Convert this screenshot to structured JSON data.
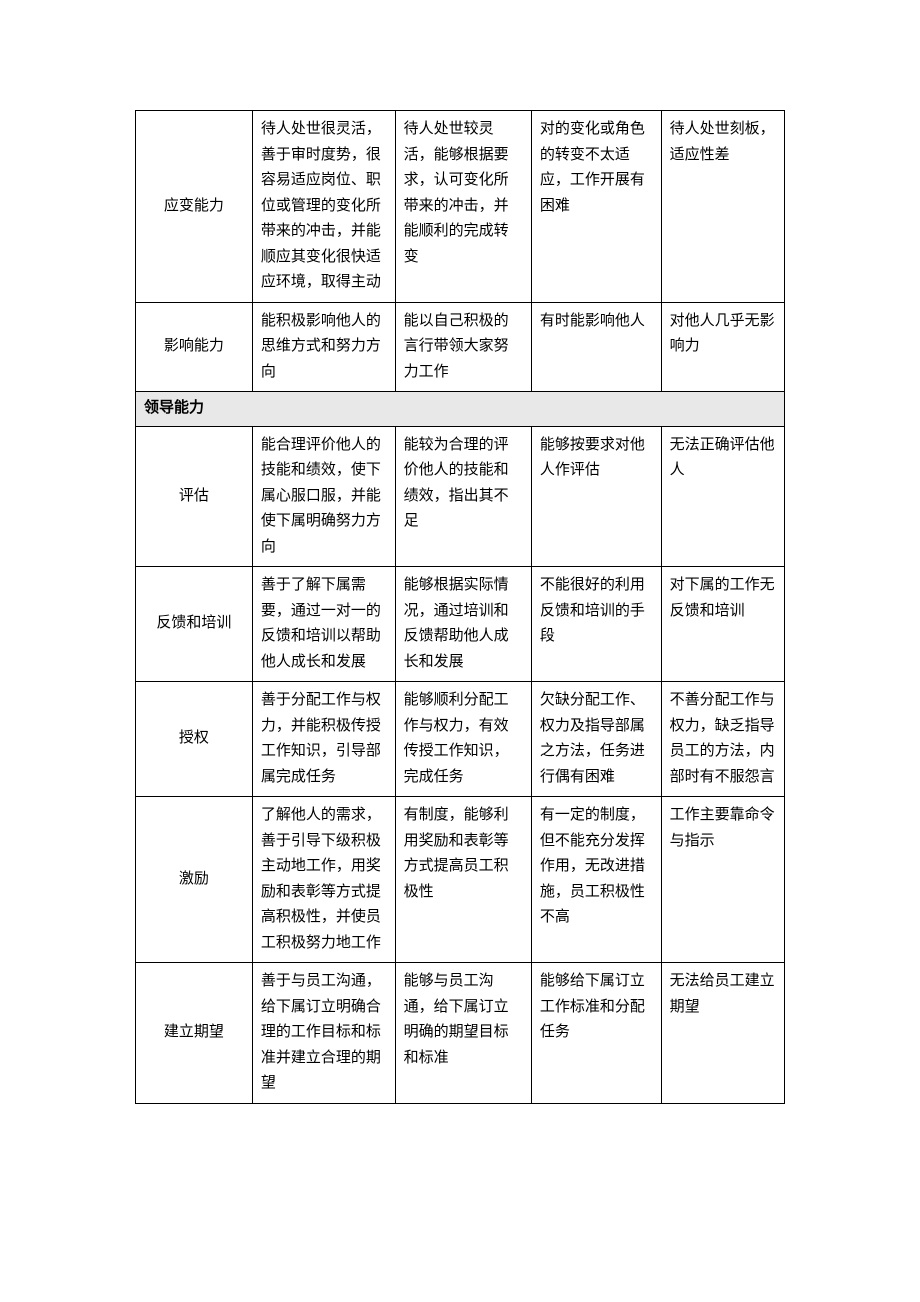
{
  "table": {
    "colors": {
      "header_bg": "#e8e8e8",
      "border": "#000000",
      "bg": "#ffffff",
      "text": "#000000"
    },
    "columns": [
      "label",
      "level1",
      "level2",
      "level3",
      "level4"
    ],
    "col_widths_percent": [
      18,
      22,
      21,
      20,
      19
    ],
    "font_size_pt": 11,
    "rows": [
      {
        "type": "data",
        "label": "应变能力",
        "cells": [
          "待人处世很灵活，善于审时度势，很容易适应岗位、职位或管理的变化所带来的冲击，并能顺应其变化很快适应环境，取得主动",
          "待人处世较灵活，能够根据要求，认可变化所带来的冲击，并能顺利的完成转变",
          "对的变化或角色的转变不太适应，工作开展有困难",
          "待人处世刻板，适应性差"
        ]
      },
      {
        "type": "data",
        "label": "影响能力",
        "cells": [
          "能积极影响他人的思维方式和努力方向",
          "能以自己积极的言行带领大家努力工作",
          "有时能影响他人",
          "对他人几乎无影响力"
        ]
      },
      {
        "type": "section",
        "label": "领导能力"
      },
      {
        "type": "data",
        "label": "评估",
        "cells": [
          "能合理评价他人的技能和绩效，使下属心服口服，并能使下属明确努力方向",
          "能较为合理的评价他人的技能和绩效，指出其不足",
          "能够按要求对他人作评估",
          "无法正确评估他人"
        ]
      },
      {
        "type": "data",
        "label": "反馈和培训",
        "cells": [
          "善于了解下属需要，通过一对一的反馈和培训以帮助他人成长和发展",
          "能够根据实际情况，通过培训和反馈帮助他人成长和发展",
          "不能很好的利用反馈和培训的手段",
          "对下属的工作无反馈和培训"
        ]
      },
      {
        "type": "data",
        "label": "授权",
        "cells": [
          "善于分配工作与权力，并能积极传授工作知识，引导部属完成任务",
          "能够顺利分配工作与权力，有效传授工作知识，完成任务",
          "欠缺分配工作、权力及指导部属之方法，任务进行偶有困难",
          "不善分配工作与权力，缺乏指导员工的方法，内部时有不服怨言"
        ]
      },
      {
        "type": "data",
        "label": "激励",
        "cells": [
          "了解他人的需求，善于引导下级积极主动地工作，用奖励和表彰等方式提高积极性，并使员工积极努力地工作",
          "有制度，能够利用奖励和表彰等方式提高员工积极性",
          "有一定的制度，但不能充分发挥作用，无改进措施，员工积极性不高",
          "工作主要靠命令与指示"
        ]
      },
      {
        "type": "data",
        "label": "建立期望",
        "cells": [
          "善于与员工沟通，给下属订立明确合理的工作目标和标准并建立合理的期望",
          "能够与员工沟通，给下属订立明确的期望目标和标准",
          "能够给下属订立工作标准和分配任务",
          "无法给员工建立期望"
        ]
      }
    ]
  }
}
